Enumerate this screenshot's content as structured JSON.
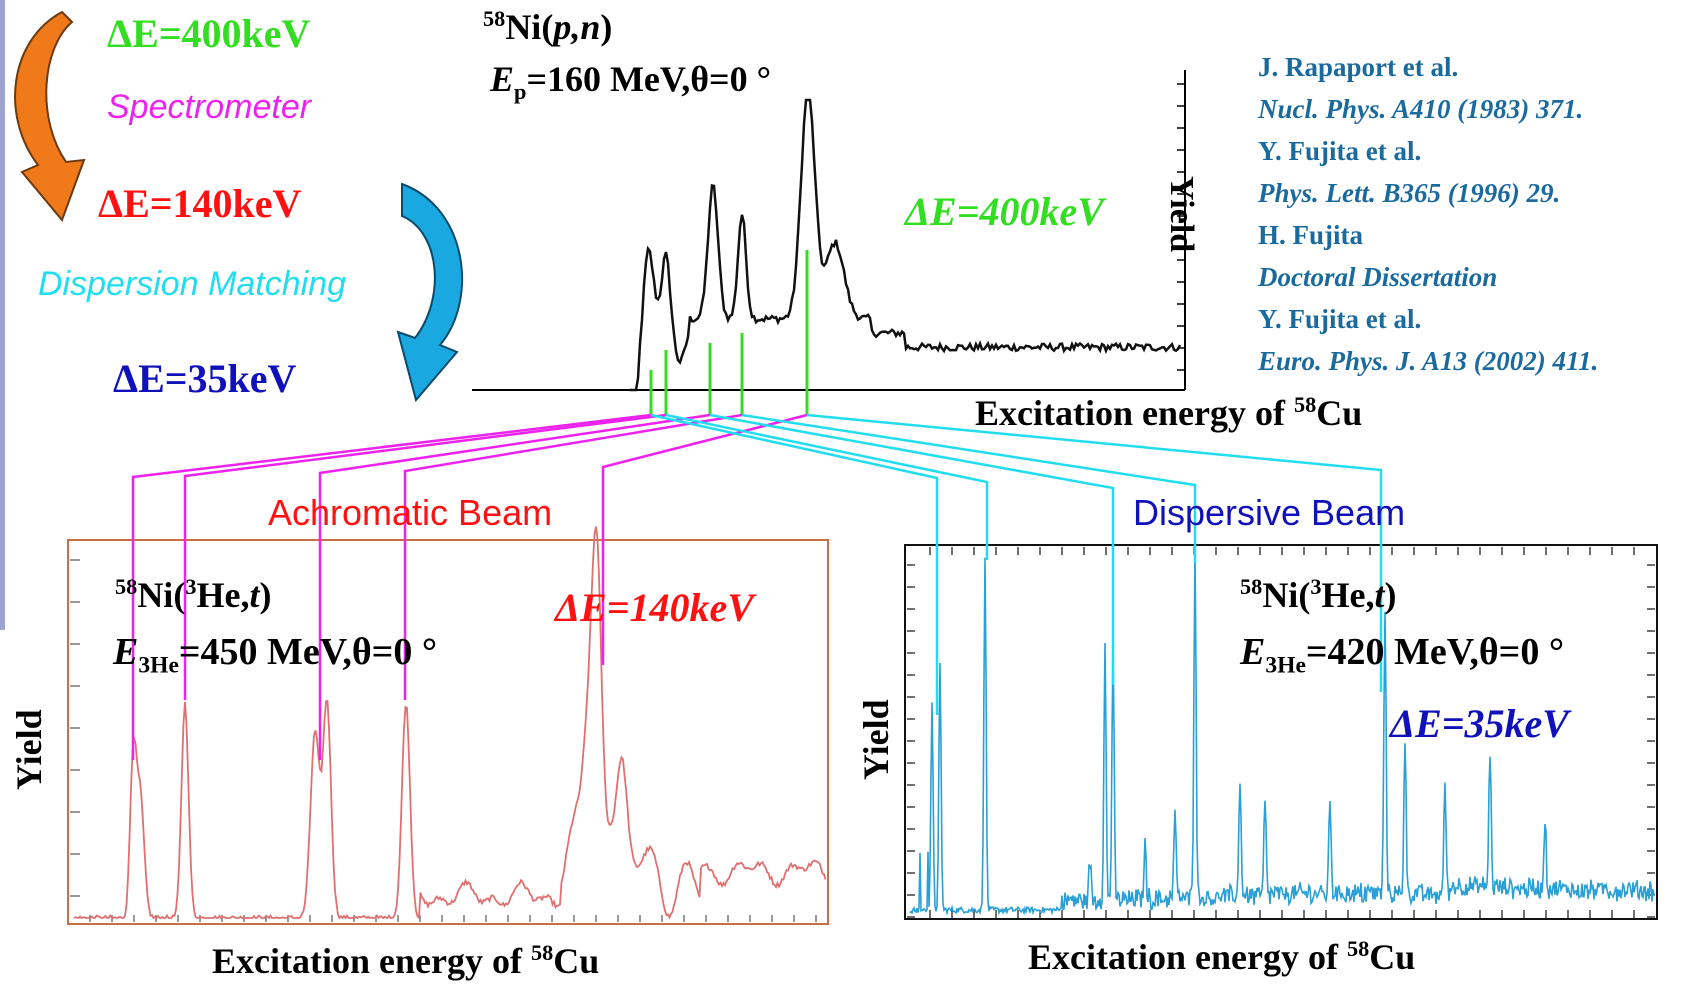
{
  "resolution_flow": {
    "step1": "ΔE=400keV",
    "arrow1_label": "Spectrometer",
    "step2": "ΔE=140keV",
    "arrow2_label": "Dispersion Matching",
    "step3": "ΔE=35keV"
  },
  "top_panel": {
    "reaction_mass": "58",
    "reaction_rest": "Ni(",
    "reaction_particles": "p,n",
    "reaction_close": ")",
    "energy_symbol": "E",
    "energy_sub": "p",
    "energy_value": "=160 MeV,θ=0 °",
    "resolution": "ΔE=400keV",
    "ylabel": "Yield",
    "xlabel_pre": "Excitation energy of ",
    "xlabel_mass": "58",
    "xlabel_elem": "Cu"
  },
  "references": [
    "J. Rapaport et al.",
    "Nucl. Phys. A410 (1983) 371.",
    "Y. Fujita et al.",
    "Phys. Lett. B365 (1996) 29.",
    "H. Fujita",
    "Doctoral Dissertation",
    "Y. Fujita et al.",
    "Euro. Phys. J. A13 (2002) 411."
  ],
  "left_panel": {
    "title": "Achromatic Beam",
    "reaction_mass": "58",
    "reaction_mid": "Ni(",
    "reaction_mass2": "3",
    "reaction_rest": "He,",
    "reaction_t": "t",
    "reaction_close": ")",
    "energy_symbol": "E",
    "energy_sub": "3He",
    "energy_value": "=450 MeV,θ=0 °",
    "resolution": "ΔE=140keV",
    "ylabel": "Yield",
    "xlabel_pre": "Excitation energy of ",
    "xlabel_mass": "58",
    "xlabel_elem": "Cu"
  },
  "right_panel": {
    "title": "Dispersive Beam",
    "reaction_mass": "58",
    "reaction_mid": "Ni(",
    "reaction_mass2": "3",
    "reaction_rest": "He,",
    "reaction_t": "t",
    "reaction_close": ")",
    "energy_symbol": "E",
    "energy_sub": "3He",
    "energy_value": "=420 MeV,θ=0 °",
    "resolution": "ΔE=35keV",
    "ylabel": "Yield",
    "xlabel_pre": "Excitation energy of ",
    "xlabel_mass": "58",
    "xlabel_elem": "Cu"
  },
  "colors": {
    "green": "#33dd22",
    "magenta": "#ee22ee",
    "red": "#ff1111",
    "cyan": "#22ddee",
    "blue": "#1111bb",
    "ref_blue": "#1b6a9e",
    "arrow_orange": "#f07a1a",
    "arrow_blue": "#1aa8e0",
    "spectrum_red": "#e07070",
    "spectrum_blue": "#2aa0d6",
    "frame_brown": "#c86f4a"
  },
  "chart_data": [
    {
      "type": "line",
      "panel": "top",
      "xlabel": "Excitation energy of 58Cu",
      "ylabel": "Yield",
      "peak_x_positions": [
        601,
        614,
        653,
        684,
        742
      ],
      "series": [
        {
          "values": [
            0,
            0,
            0.45,
            0.25,
            0.6,
            0.6,
            0.3,
            0.95,
            0.3,
            0.3,
            0.25,
            0.25
          ]
        }
      ]
    },
    {
      "type": "line",
      "panel": "left",
      "xlabel": "Excitation energy of 58Cu",
      "ylabel": "Yield",
      "peaks": [
        {
          "x": 0.08,
          "h": 0.6
        },
        {
          "x": 0.15,
          "h": 0.78
        },
        {
          "x": 0.33,
          "h": 0.58
        },
        {
          "x": 0.44,
          "h": 0.78
        },
        {
          "x": 0.7,
          "h": 0.9
        }
      ]
    },
    {
      "type": "line",
      "panel": "right",
      "xlabel": "Excitation energy of 58Cu",
      "ylabel": "Yield",
      "peaks": [
        {
          "x": 0.05,
          "h": 0.7
        },
        {
          "x": 0.11,
          "h": 1.0
        },
        {
          "x": 0.28,
          "h": 0.75
        },
        {
          "x": 0.39,
          "h": 1.0
        },
        {
          "x": 0.64,
          "h": 0.72
        }
      ]
    }
  ]
}
